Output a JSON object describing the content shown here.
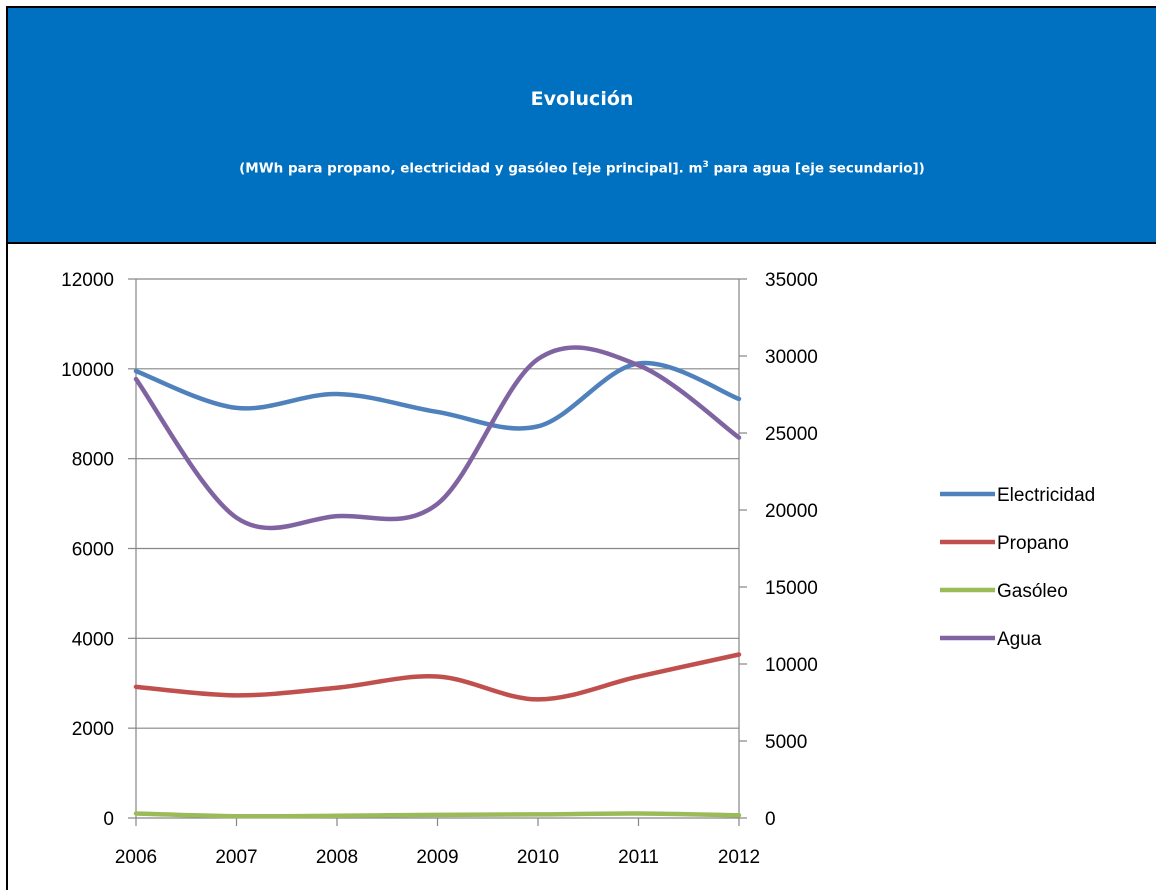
{
  "header": {
    "title": "Evolución",
    "subtitle_pre": "(MWh para propano, electricidad y gasóleo [eje principal]. m",
    "subtitle_sup": "3",
    "subtitle_post": " para agua [eje secundario])"
  },
  "chart_data": {
    "type": "line",
    "title": "Evolución",
    "subtitle": "(MWh para propano, electricidad y gasóleo [eje principal]. m3 para agua [eje secundario])",
    "x": [
      2006,
      2007,
      2008,
      2009,
      2010,
      2011,
      2012
    ],
    "y_left": {
      "ylim": [
        0,
        12000
      ],
      "ticks": [
        0,
        2000,
        4000,
        6000,
        8000,
        10000,
        12000
      ]
    },
    "y_right": {
      "ylim": [
        0,
        35000
      ],
      "ticks": [
        0,
        5000,
        10000,
        15000,
        20000,
        25000,
        30000,
        35000
      ]
    },
    "grid": true,
    "legend_position": "right",
    "series": [
      {
        "name": "Electricidad",
        "axis": "left",
        "color": "#4f81bd",
        "values": [
          9950,
          9130,
          9440,
          9040,
          8720,
          10120,
          9330
        ]
      },
      {
        "name": "Propano",
        "axis": "left",
        "color": "#c0504d",
        "values": [
          2920,
          2730,
          2900,
          3150,
          2640,
          3150,
          3640
        ]
      },
      {
        "name": "Gasóleo",
        "axis": "left",
        "color": "#9bbb59",
        "values": [
          100,
          40,
          50,
          70,
          80,
          100,
          60
        ]
      },
      {
        "name": "Agua",
        "axis": "right",
        "color": "#8064a2",
        "values": [
          28500,
          19500,
          19600,
          20400,
          29800,
          29400,
          24700
        ]
      }
    ]
  }
}
